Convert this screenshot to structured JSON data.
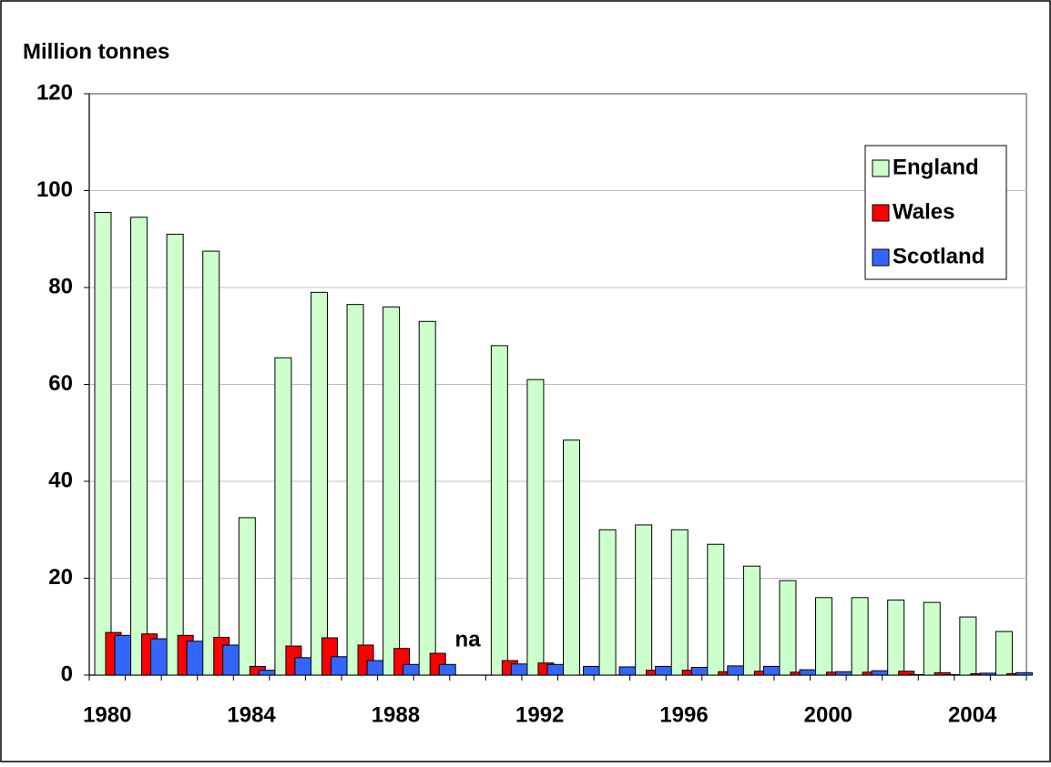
{
  "chart_data": {
    "type": "bar",
    "ylabel": "Million tonnes",
    "categories": [
      "1980",
      null,
      null,
      null,
      "1984",
      null,
      null,
      null,
      "1988",
      null,
      null,
      null,
      "1992",
      null,
      null,
      null,
      "1996",
      null,
      null,
      null,
      "2000",
      null,
      null,
      null,
      "2004",
      null
    ],
    "series": [
      {
        "name": "England",
        "color": "#ccffcc",
        "values": [
          95.5,
          94.5,
          91,
          87.5,
          32.5,
          65.5,
          79,
          76.5,
          76,
          73,
          null,
          68,
          61,
          48.5,
          30,
          31,
          30,
          27,
          22.5,
          19.5,
          16,
          16,
          15.5,
          15,
          12,
          9
        ]
      },
      {
        "name": "Wales",
        "color": "#ff0000",
        "values": [
          8.8,
          8.5,
          8.2,
          7.8,
          1.8,
          6,
          7.7,
          6.2,
          5.5,
          4.5,
          null,
          3,
          2.5,
          0,
          0,
          1,
          1,
          0.7,
          0.8,
          0.6,
          0.6,
          0.6,
          0.8,
          0.5,
          0.3,
          0.3
        ]
      },
      {
        "name": "Scotland",
        "color": "#3366ff",
        "values": [
          8.2,
          7.5,
          7,
          6.2,
          1,
          3.6,
          3.8,
          3,
          2.2,
          2.2,
          null,
          2.3,
          2.2,
          1.8,
          1.7,
          1.8,
          1.6,
          1.9,
          1.8,
          1.1,
          0.7,
          0.9,
          0.1,
          0.1,
          0.4,
          0.5
        ]
      }
    ],
    "annotation": "na",
    "ylim": [
      0,
      120
    ],
    "yticks": [
      0,
      20,
      40,
      60,
      80,
      100,
      120
    ],
    "grid": true,
    "legend": "top-right"
  }
}
